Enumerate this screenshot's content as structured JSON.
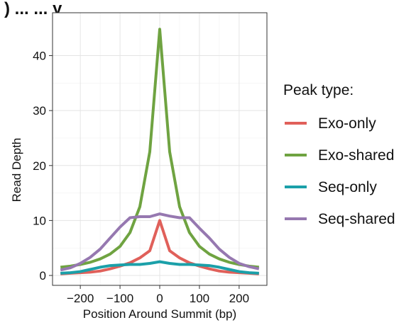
{
  "chart_data": {
    "type": "line",
    "title": "",
    "title_fragment": ") ... ... y",
    "xlabel": "Position Around Summit (bp)",
    "ylabel": "Read Depth",
    "xlim": [
      -270,
      270
    ],
    "ylim": [
      -1.8,
      47.8
    ],
    "x_ticks": [
      -200,
      -100,
      0,
      100,
      200
    ],
    "x_tick_labels": [
      "−200",
      "−100",
      "0",
      "100",
      "200"
    ],
    "y_ticks": [
      0,
      10,
      20,
      30,
      40
    ],
    "y_tick_labels": [
      "0",
      "10",
      "20",
      "30",
      "40"
    ],
    "grid": true,
    "legend": {
      "title": "Peak type:",
      "position": "right"
    },
    "x": [
      -250,
      -225,
      -200,
      -175,
      -150,
      -125,
      -100,
      -75,
      -50,
      -25,
      0,
      25,
      50,
      75,
      100,
      125,
      150,
      175,
      200,
      225,
      250
    ],
    "series": [
      {
        "name": "Exo-only",
        "color": "#e0605a",
        "values": [
          0.3,
          0.4,
          0.5,
          0.6,
          0.8,
          1.2,
          1.7,
          2.3,
          3.2,
          4.5,
          10.0,
          4.5,
          3.2,
          2.3,
          1.7,
          1.2,
          0.8,
          0.6,
          0.5,
          0.4,
          0.3
        ]
      },
      {
        "name": "Exo-shared",
        "color": "#6fa341",
        "values": [
          1.5,
          1.7,
          2.0,
          2.4,
          3.0,
          3.9,
          5.3,
          7.8,
          12.5,
          22.5,
          44.8,
          22.5,
          12.5,
          7.8,
          5.3,
          3.9,
          3.0,
          2.4,
          2.0,
          1.7,
          1.5
        ]
      },
      {
        "name": "Seq-only",
        "color": "#1ba0a9",
        "values": [
          0.4,
          0.5,
          0.7,
          1.1,
          1.5,
          1.8,
          1.9,
          2.0,
          2.0,
          2.2,
          2.5,
          2.2,
          2.0,
          2.0,
          1.9,
          1.8,
          1.5,
          1.1,
          0.7,
          0.5,
          0.4
        ]
      },
      {
        "name": "Seq-shared",
        "color": "#9678b0",
        "values": [
          1.0,
          1.4,
          2.2,
          3.3,
          4.8,
          6.8,
          8.8,
          10.5,
          10.7,
          10.7,
          11.2,
          10.8,
          10.5,
          10.5,
          8.6,
          6.8,
          4.8,
          3.3,
          2.2,
          1.6,
          1.2
        ]
      }
    ]
  }
}
